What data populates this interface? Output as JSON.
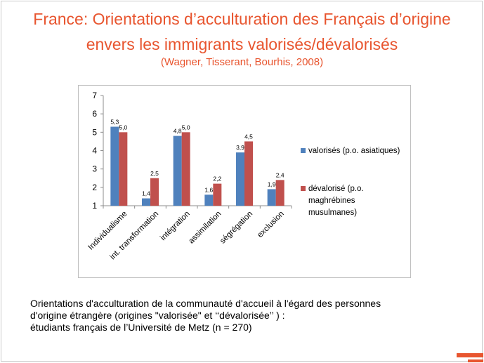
{
  "slide": {
    "title_line1": "France: Orientations d’acculturation des Français d’origine",
    "title_line2": "envers les immigrants valorisés/dévalorisés",
    "source": "(Wagner, Tisserant, Bourhis, 2008)",
    "caption_lines": [
      "Orientations d'acculturation de la communauté d'accueil à l'égard des personnes",
      "d'origine étrangère (origines \"valorisée\" et ‘‘dévalorisée’’ ) :",
      "étudiants français de l’Université de Metz (n = 270)"
    ],
    "accent_color": "#e8552f"
  },
  "chart_data": {
    "type": "bar",
    "categories": [
      "Individualisme",
      "int. transformation",
      "intégration",
      "assimilation",
      "ségrégation",
      "exclusion"
    ],
    "series": [
      {
        "name": "valorisés (p.o. asiatiques)",
        "values": [
          5.3,
          1.4,
          4.8,
          1.6,
          3.9,
          1.9
        ],
        "labels": [
          "5,3",
          "1,4",
          "4,8",
          "1,6",
          "3,9",
          "1,9"
        ],
        "color": "#4f81bd"
      },
      {
        "name": "dévalorisé (p.o. maghrébines musulmanes)",
        "legend_lines": [
          "dévalorisé (p.o.",
          "maghrébines",
          "musulmanes)"
        ],
        "values": [
          5.0,
          2.5,
          5.0,
          2.2,
          4.5,
          2.4
        ],
        "labels": [
          "5,0",
          "2,5",
          "5,0",
          "2,2",
          "4,5",
          "2,4"
        ],
        "color": "#c0504d"
      }
    ],
    "yticks": [
      1,
      2,
      3,
      4,
      5,
      6,
      7
    ],
    "ylim": [
      1,
      7
    ],
    "grid": false,
    "legend": "right"
  }
}
